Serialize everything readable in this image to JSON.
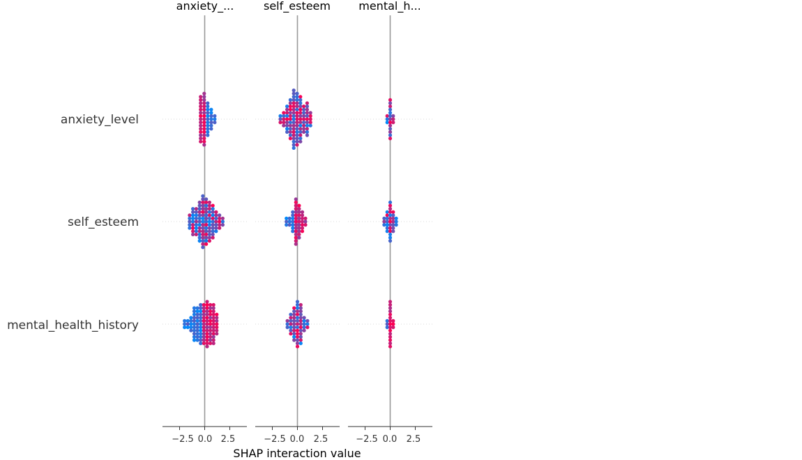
{
  "chart_data": {
    "type": "scatter",
    "subtype": "shap-interaction-beeswarm",
    "xlabel": "SHAP interaction value",
    "xlim": [
      -4.2,
      4.2
    ],
    "xticks": [
      -2.5,
      0.0,
      2.5
    ],
    "xtick_labels": [
      "−2.5",
      "0.0",
      "2.5"
    ],
    "features": [
      "anxiety_level",
      "self_esteem",
      "mental_health_history"
    ],
    "panel_titles": [
      "anxiety_...",
      "self_esteem",
      "mental_h..."
    ],
    "color_low": "#008bfb",
    "color_high": "#ff0052",
    "zero_line_color": "#999999",
    "grid_color": "#cccccc",
    "cells": [
      {
        "row": "anxiety_level",
        "col": "anxiety_level",
        "x_min": -0.4,
        "x_max": 1.0,
        "height": 1.0,
        "shape": 1.0,
        "low_side": "right"
      },
      {
        "row": "anxiety_level",
        "col": "self_esteem",
        "x_min": -1.7,
        "x_max": 1.3,
        "height": 0.98,
        "shape": 1.0,
        "low_side": "mixed"
      },
      {
        "row": "anxiety_level",
        "col": "mental_health_history",
        "x_min": -0.3,
        "x_max": 0.3,
        "height": 1.0,
        "shape": 0.3,
        "low_side": "mixed"
      },
      {
        "row": "self_esteem",
        "col": "anxiety_level",
        "x_min": -1.5,
        "x_max": 1.8,
        "height": 1.0,
        "shape": 1.0,
        "low_side": "mixed"
      },
      {
        "row": "self_esteem",
        "col": "self_esteem",
        "x_min": -1.1,
        "x_max": 0.8,
        "height": 1.0,
        "shape": 0.5,
        "low_side": "left"
      },
      {
        "row": "self_esteem",
        "col": "mental_health_history",
        "x_min": -0.6,
        "x_max": 0.6,
        "height": 1.0,
        "shape": 0.4,
        "low_side": "mixed"
      },
      {
        "row": "mental_health_history",
        "col": "anxiety_level",
        "x_min": -2.0,
        "x_max": 1.2,
        "height": 1.0,
        "shape": 1.0,
        "low_side": "left"
      },
      {
        "row": "mental_health_history",
        "col": "self_esteem",
        "x_min": -1.0,
        "x_max": 1.0,
        "height": 1.0,
        "shape": 0.8,
        "low_side": "mixed"
      },
      {
        "row": "mental_health_history",
        "col": "mental_health_history",
        "x_min": -0.3,
        "x_max": 0.3,
        "height": 1.0,
        "shape": 0.3,
        "low_side": "left"
      }
    ]
  }
}
